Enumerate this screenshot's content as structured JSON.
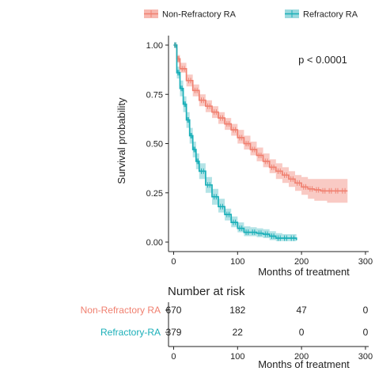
{
  "chart_data": {
    "type": "line",
    "subtype": "kaplan-meier survival curve with confidence bands",
    "ylabel": "Survival probability",
    "xlabel": "Months of treatment",
    "xlim": [
      -8,
      305
    ],
    "ylim": [
      0,
      1.0
    ],
    "xticks": [
      "0",
      "100",
      "200",
      "300"
    ],
    "xtick_values": [
      0,
      100,
      200,
      300
    ],
    "yticks": [
      "0.00",
      "0.25",
      "0.50",
      "0.75",
      "1.00"
    ],
    "ytick_values": [
      0,
      0.25,
      0.5,
      0.75,
      1.0
    ],
    "annotation": "p < 0.0001",
    "legend_position": "top",
    "series": [
      {
        "name": "Non-Refractory RA",
        "color": "#f08070",
        "fill": "#f7b8b0",
        "x": [
          0,
          5,
          10,
          20,
          30,
          40,
          50,
          60,
          70,
          80,
          90,
          100,
          110,
          120,
          130,
          140,
          150,
          160,
          170,
          180,
          190,
          200,
          210,
          220,
          230,
          240,
          250,
          260,
          272
        ],
        "y": [
          1.0,
          0.93,
          0.88,
          0.82,
          0.77,
          0.72,
          0.69,
          0.66,
          0.63,
          0.6,
          0.57,
          0.53,
          0.5,
          0.47,
          0.44,
          0.41,
          0.38,
          0.36,
          0.34,
          0.32,
          0.3,
          0.28,
          0.27,
          0.265,
          0.26,
          0.26,
          0.26,
          0.26,
          0.26
        ],
        "lower": [
          1.0,
          0.91,
          0.86,
          0.79,
          0.74,
          0.69,
          0.66,
          0.63,
          0.6,
          0.57,
          0.54,
          0.5,
          0.47,
          0.44,
          0.41,
          0.38,
          0.35,
          0.32,
          0.3,
          0.28,
          0.26,
          0.24,
          0.22,
          0.21,
          0.21,
          0.2,
          0.2,
          0.2,
          0.2
        ],
        "upper": [
          1.0,
          0.95,
          0.91,
          0.85,
          0.8,
          0.75,
          0.72,
          0.69,
          0.66,
          0.63,
          0.6,
          0.57,
          0.54,
          0.51,
          0.48,
          0.45,
          0.42,
          0.4,
          0.38,
          0.36,
          0.34,
          0.33,
          0.32,
          0.32,
          0.32,
          0.32,
          0.32,
          0.32,
          0.32
        ]
      },
      {
        "name": "Refractory RA",
        "color": "#1aafb8",
        "fill": "#9ad9de",
        "x": [
          0,
          5,
          10,
          15,
          20,
          25,
          30,
          35,
          40,
          50,
          60,
          70,
          80,
          90,
          100,
          110,
          120,
          130,
          140,
          150,
          160,
          170,
          180,
          192
        ],
        "y": [
          1.0,
          0.86,
          0.78,
          0.7,
          0.62,
          0.54,
          0.47,
          0.41,
          0.36,
          0.29,
          0.23,
          0.18,
          0.14,
          0.1,
          0.07,
          0.05,
          0.05,
          0.045,
          0.04,
          0.03,
          0.02,
          0.02,
          0.02,
          0.01
        ],
        "lower": [
          1.0,
          0.83,
          0.74,
          0.66,
          0.58,
          0.5,
          0.43,
          0.37,
          0.32,
          0.25,
          0.19,
          0.15,
          0.11,
          0.075,
          0.05,
          0.03,
          0.03,
          0.025,
          0.02,
          0.01,
          0.005,
          0.005,
          0.005,
          0.0
        ],
        "upper": [
          1.0,
          0.89,
          0.82,
          0.74,
          0.66,
          0.58,
          0.51,
          0.45,
          0.4,
          0.33,
          0.27,
          0.22,
          0.17,
          0.13,
          0.1,
          0.08,
          0.075,
          0.07,
          0.065,
          0.055,
          0.045,
          0.04,
          0.04,
          0.03
        ]
      }
    ],
    "risk_table": {
      "title": "Number at risk",
      "xlabel": "Months of treatment",
      "xticks": [
        "0",
        "100",
        "200",
        "300"
      ],
      "xtick_values": [
        0,
        100,
        200,
        300
      ],
      "rows": [
        {
          "label": "Non-Refractory RA",
          "color": "#f08070",
          "values": [
            "670",
            "182",
            "47",
            "0"
          ]
        },
        {
          "label": "Refractory-RA",
          "color": "#1aafb8",
          "values": [
            "379",
            "22",
            "0",
            "0"
          ]
        }
      ]
    }
  }
}
